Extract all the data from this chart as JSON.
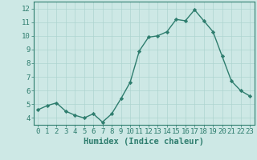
{
  "x": [
    0,
    1,
    2,
    3,
    4,
    5,
    6,
    7,
    8,
    9,
    10,
    11,
    12,
    13,
    14,
    15,
    16,
    17,
    18,
    19,
    20,
    21,
    22,
    23
  ],
  "y": [
    4.6,
    4.9,
    5.1,
    4.5,
    4.2,
    4.0,
    4.3,
    3.7,
    4.3,
    5.4,
    6.6,
    8.9,
    9.9,
    10.0,
    10.3,
    11.2,
    11.1,
    11.9,
    11.1,
    10.3,
    8.5,
    6.7,
    6.0,
    5.6
  ],
  "line_color": "#2e7d6e",
  "marker": "D",
  "marker_size": 2.2,
  "linewidth": 1.0,
  "bg_color": "#cde8e5",
  "grid_color": "#aed4d0",
  "xlabel": "Humidex (Indice chaleur)",
  "xlim": [
    -0.5,
    23.5
  ],
  "ylim": [
    3.5,
    12.5
  ],
  "yticks": [
    4,
    5,
    6,
    7,
    8,
    9,
    10,
    11,
    12
  ],
  "xticks": [
    0,
    1,
    2,
    3,
    4,
    5,
    6,
    7,
    8,
    9,
    10,
    11,
    12,
    13,
    14,
    15,
    16,
    17,
    18,
    19,
    20,
    21,
    22,
    23
  ],
  "tick_label_fontsize": 6.5,
  "xlabel_fontsize": 7.5,
  "tick_color": "#2e7d6e",
  "axis_color": "#2e7d6e"
}
